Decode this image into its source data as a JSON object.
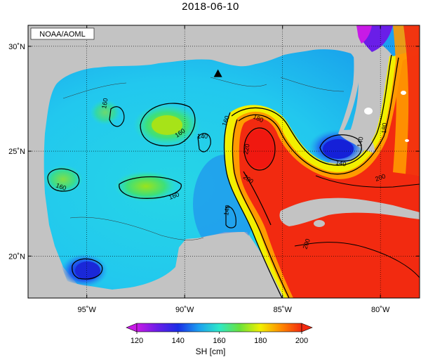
{
  "title": "2018-06-10",
  "source_label": "NOAA/AOML",
  "map": {
    "lon_range": [
      -98,
      -78
    ],
    "lat_range": [
      18,
      31
    ],
    "lon_ticks": [
      {
        "value": -95,
        "label": "95˚W"
      },
      {
        "value": -90,
        "label": "90˚W"
      },
      {
        "value": -85,
        "label": "85˚W"
      },
      {
        "value": -80,
        "label": "80˚W"
      }
    ],
    "lat_ticks": [
      {
        "value": 30,
        "label": "30˚N"
      },
      {
        "value": 25,
        "label": "25˚N"
      },
      {
        "value": 20,
        "label": "20˚N"
      }
    ],
    "contour_labels": [
      "160",
      "160",
      "160",
      "160",
      "140",
      "160",
      "180",
      "200",
      "220",
      "200",
      "200",
      "180",
      "140",
      "140",
      "140"
    ],
    "marker": {
      "symbol": "triangle",
      "lon": -88.3,
      "lat": 28.7
    },
    "colors": {
      "land": "#c3c3c3",
      "low": "#1a2de6",
      "mid": "#2ee8c8",
      "high": "#f22a10"
    }
  },
  "colorbar": {
    "ticks": [
      "120",
      "140",
      "160",
      "180",
      "200"
    ],
    "label": "SH [cm]",
    "range": [
      120,
      200
    ]
  }
}
